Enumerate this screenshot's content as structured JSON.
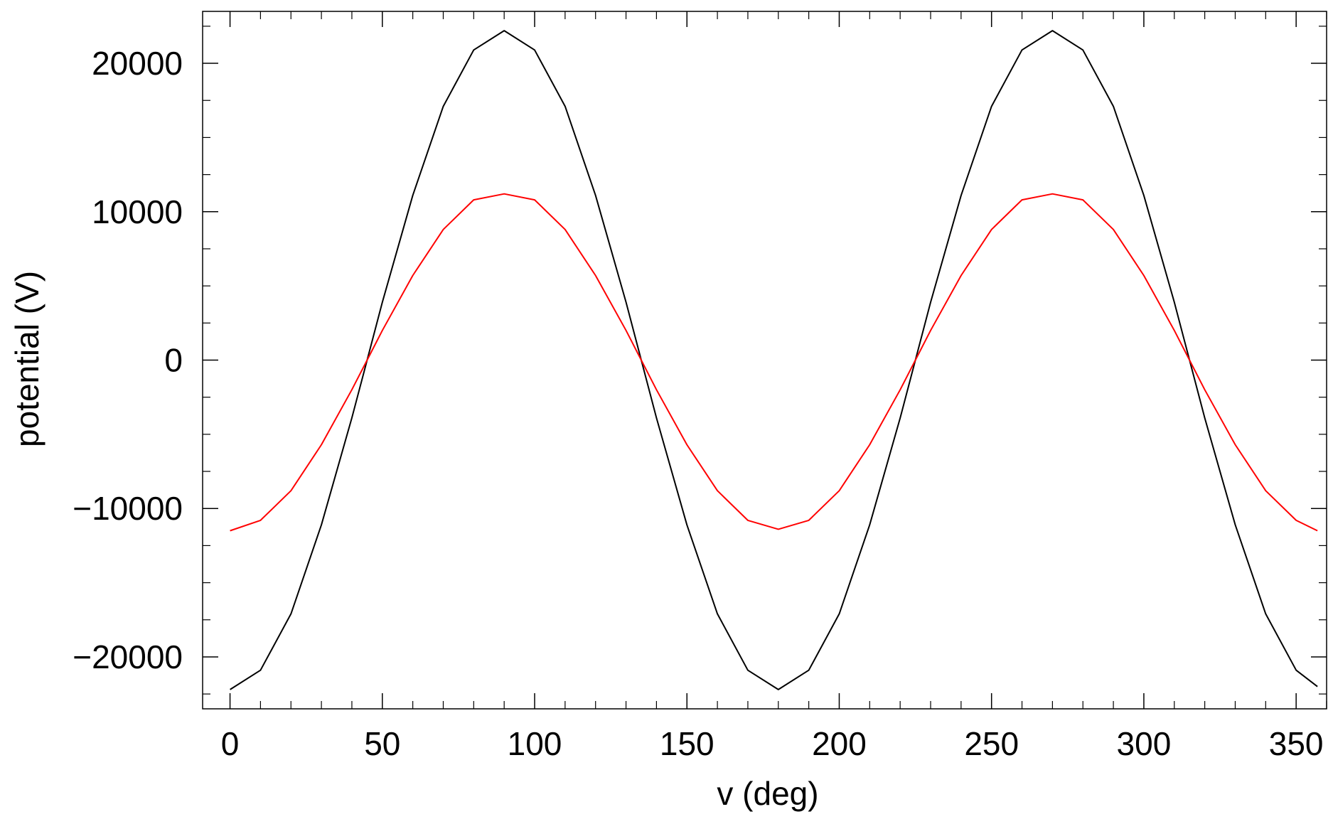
{
  "chart_data": {
    "type": "line",
    "title": "",
    "xlabel": "v (deg)",
    "ylabel": "potential (V)",
    "xlim": [
      -9,
      360
    ],
    "ylim": [
      -23500,
      23500
    ],
    "xticks": [
      0,
      50,
      100,
      150,
      200,
      250,
      300,
      350
    ],
    "xtick_labels": [
      "0",
      "50",
      "100",
      "150",
      "200",
      "250",
      "300",
      "350"
    ],
    "yticks": [
      -20000,
      -10000,
      0,
      10000,
      20000
    ],
    "ytick_labels": [
      "−20000",
      "−10000",
      "0",
      "10000",
      "20000"
    ],
    "x_minor_step": 10,
    "y_minor_step": 2500,
    "grid": false,
    "legend": "none",
    "series": [
      {
        "color": "#000000",
        "x": [
          0,
          10,
          20,
          30,
          40,
          45,
          50,
          60,
          70,
          80,
          90,
          100,
          110,
          120,
          130,
          135,
          140,
          150,
          160,
          170,
          180,
          190,
          200,
          210,
          220,
          225,
          230,
          240,
          250,
          260,
          270,
          280,
          290,
          300,
          310,
          315,
          320,
          330,
          340,
          350,
          357
        ],
        "y": [
          -22200,
          -20900,
          -17100,
          -11100,
          -3900,
          0,
          3900,
          11100,
          17100,
          20900,
          22200,
          20900,
          17100,
          11100,
          3900,
          0,
          -3900,
          -11100,
          -17100,
          -20900,
          -22200,
          -20900,
          -17100,
          -11100,
          -3900,
          0,
          3900,
          11100,
          17100,
          20900,
          22200,
          20900,
          17100,
          11100,
          3900,
          0,
          -3900,
          -11100,
          -17100,
          -20900,
          -22000
        ]
      },
      {
        "color": "#ff0000",
        "x": [
          0,
          10,
          20,
          30,
          40,
          45,
          50,
          60,
          70,
          80,
          90,
          100,
          110,
          120,
          130,
          135,
          140,
          150,
          160,
          170,
          180,
          190,
          200,
          210,
          220,
          225,
          230,
          240,
          250,
          260,
          270,
          280,
          290,
          300,
          310,
          315,
          320,
          330,
          340,
          350,
          357
        ],
        "y": [
          -11500,
          -10800,
          -8800,
          -5700,
          -2000,
          0,
          2000,
          5700,
          8800,
          10800,
          11200,
          10800,
          8800,
          5700,
          2000,
          0,
          -2000,
          -5700,
          -8800,
          -10800,
          -11400,
          -10800,
          -8800,
          -5700,
          -2000,
          0,
          2000,
          5700,
          8800,
          10800,
          11200,
          10800,
          8800,
          5700,
          2000,
          0,
          -2000,
          -5700,
          -8800,
          -10800,
          -11500
        ]
      }
    ]
  }
}
